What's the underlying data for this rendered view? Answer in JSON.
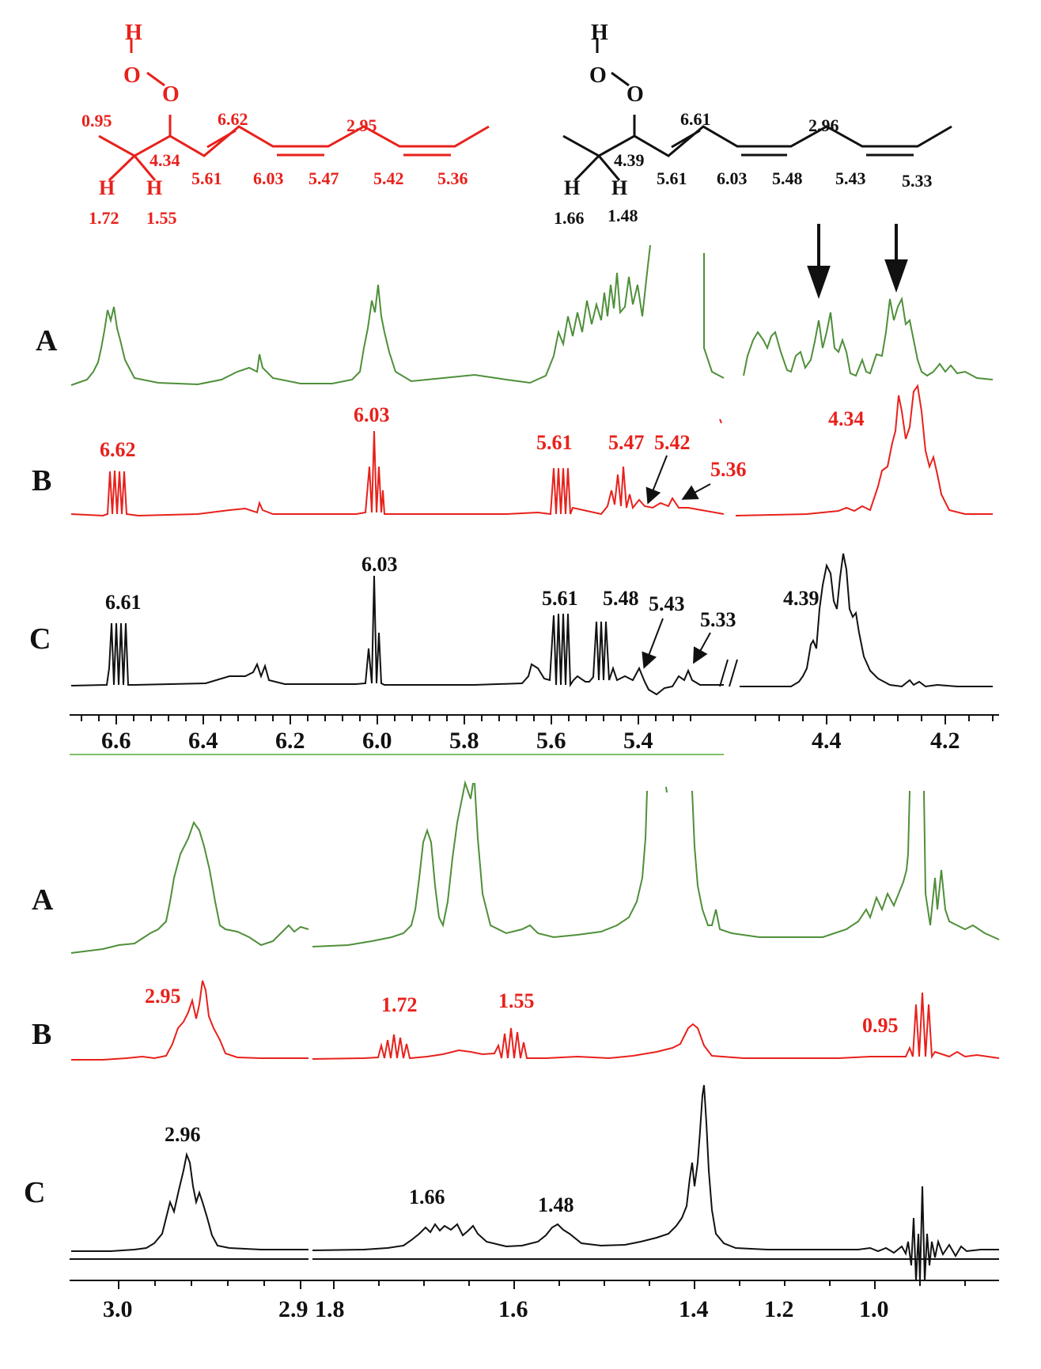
{
  "colors": {
    "red": "#e8211c",
    "black": "#111111",
    "green": "#4f8f3a"
  },
  "structure_red": {
    "atoms": [
      "H",
      "O",
      "O",
      "H",
      "H"
    ],
    "shifts": [
      "0.95",
      "4.34",
      "6.62",
      "2.95",
      "5.61",
      "6.03",
      "5.47",
      "5.42",
      "5.36",
      "1.72",
      "1.55"
    ]
  },
  "structure_black": {
    "atoms": [
      "H",
      "O",
      "O",
      "H",
      "H"
    ],
    "shifts": [
      "6.61",
      "2.96",
      "4.39",
      "5.61",
      "6.03",
      "5.48",
      "5.43",
      "5.33",
      "1.66",
      "1.48"
    ]
  },
  "spectra_top": {
    "rows": [
      "A",
      "B",
      "C"
    ],
    "b_labels": [
      "6.62",
      "6.03",
      "5.61",
      "5.47",
      "5.42",
      "5.36",
      "4.34"
    ],
    "c_labels": [
      "6.61",
      "6.03",
      "5.61",
      "5.48",
      "5.43",
      "5.33",
      "4.39"
    ],
    "axis_ticks": [
      "6.6",
      "6.4",
      "6.2",
      "6.0",
      "5.8",
      "5.6",
      "5.4",
      "4.4",
      "4.2"
    ]
  },
  "spectra_bottom": {
    "rows": [
      "A",
      "B",
      "C"
    ],
    "b_labels": [
      "2.95",
      "1.72",
      "1.55",
      "0.95"
    ],
    "c_labels": [
      "2.96",
      "1.66",
      "1.48"
    ],
    "axis_ticks": [
      "3.0",
      "2.9",
      "1.8",
      "1.6",
      "1.4",
      "1.2",
      "1.0"
    ]
  }
}
